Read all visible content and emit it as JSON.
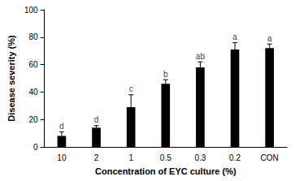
{
  "chart_data": {
    "type": "bar",
    "x_label": "Concentration of EYC culture (%)",
    "y_label": "Disease severity (%)",
    "categories": [
      "10",
      "2",
      "1",
      "0.5",
      "0.3",
      "0.2",
      "CON"
    ],
    "values": [
      8,
      14,
      29,
      46,
      58,
      71,
      72
    ],
    "errors": [
      3,
      1.5,
      9,
      3,
      4,
      5,
      3
    ],
    "letters": [
      "d",
      "d",
      "c",
      "b",
      "ab",
      "a",
      "a"
    ],
    "color": "#000000",
    "ylim": [
      0,
      100
    ],
    "yticks": [
      0,
      20,
      40,
      60,
      80,
      100
    ],
    "grid": false
  }
}
